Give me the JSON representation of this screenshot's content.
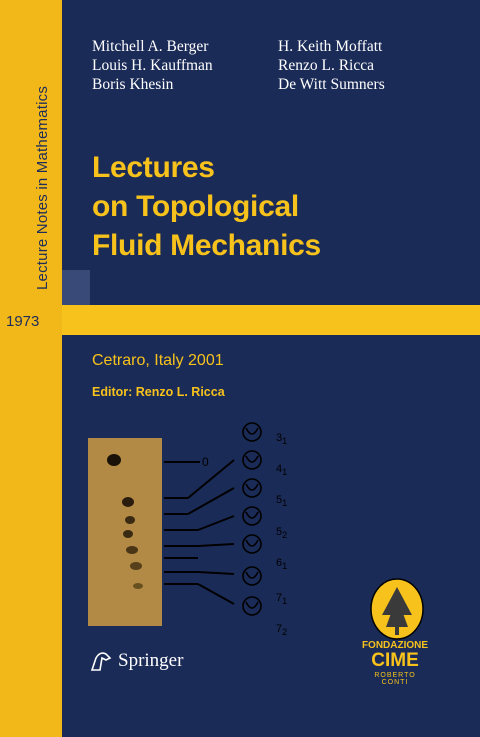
{
  "spine": {
    "series": "Lecture Notes in Mathematics",
    "volume": "1973"
  },
  "authors": {
    "left": [
      "Mitchell A. Berger",
      "Louis H. Kauffman",
      "Boris Khesin"
    ],
    "right": [
      "H. Keith Moffatt",
      "Renzo L. Ricca",
      "De Witt Sumners"
    ]
  },
  "title": [
    "Lectures",
    "on Topological",
    "Fluid Mechanics"
  ],
  "place": "Cetraro, Italy 2001",
  "editor": "Editor: Renzo L. Ricca",
  "figure": {
    "zero_label": "0",
    "knot_labels": [
      {
        "main": "3",
        "sub": "1"
      },
      {
        "main": "4",
        "sub": "1"
      },
      {
        "main": "5",
        "sub": "1"
      },
      {
        "main": "5",
        "sub": "2"
      },
      {
        "main": "6",
        "sub": "1"
      },
      {
        "main": "7",
        "sub": "1"
      },
      {
        "main": "7",
        "sub": "2"
      }
    ]
  },
  "publisher": "Springer",
  "cime": {
    "line1": "FONDAZIONE",
    "line2": "CIME",
    "line3": "ROBERTO CONTI"
  },
  "colors": {
    "navy": "#1b2b57",
    "gold": "#f7c21b"
  }
}
